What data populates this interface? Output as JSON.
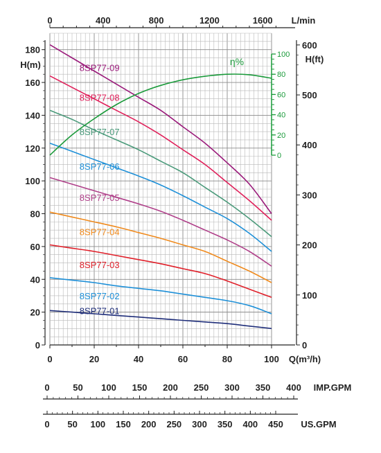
{
  "chart_data": {
    "type": "line",
    "x_axis_bottom": {
      "label": "Q(m³/h)",
      "range": [
        0,
        100
      ],
      "ticks": [
        "0",
        "20",
        "40",
        "60",
        "80",
        "100"
      ]
    },
    "x_axis_top": {
      "label": "L/min",
      "ticks": [
        "0",
        "400",
        "800",
        "1200",
        "1600"
      ]
    },
    "y_axis_left": {
      "label": "H(m)",
      "range": [
        0,
        190
      ],
      "ticks": [
        "0",
        "20",
        "40",
        "60",
        "80",
        "100",
        "120",
        "140",
        "160",
        "180"
      ]
    },
    "y_axis_right": {
      "label": "H(ft)",
      "ticks": [
        "0",
        "100",
        "200",
        "300",
        "400",
        "500",
        "600"
      ]
    },
    "efficiency_axis": {
      "label": "η%",
      "ticks": [
        "0",
        "20",
        "40",
        "60",
        "80",
        "100"
      ],
      "color": "#1a9a3a"
    },
    "imp_gpm_scale": {
      "label": "IMP.GPM",
      "ticks": [
        "0",
        "50",
        "100",
        "150",
        "200",
        "250",
        "300",
        "350",
        "400"
      ]
    },
    "us_gpm_scale": {
      "label": "US.GPM",
      "ticks": [
        "0",
        "50",
        "100",
        "150",
        "200",
        "250",
        "300",
        "350",
        "400",
        "450"
      ]
    },
    "x": [
      0,
      10,
      20,
      30,
      40,
      50,
      60,
      70,
      80,
      90,
      100
    ],
    "series": [
      {
        "name": "8SP77-01",
        "color": "#1f2e7a",
        "values": [
          21,
          20,
          19,
          18,
          17,
          16,
          15,
          14,
          13,
          11.5,
          10
        ]
      },
      {
        "name": "8SP77-02",
        "color": "#1e90d8",
        "values": [
          41,
          39.5,
          38,
          36,
          34.5,
          33,
          31,
          29,
          27,
          24,
          19
        ]
      },
      {
        "name": "8SP77-03",
        "color": "#e0202a",
        "values": [
          61,
          59,
          57,
          54.5,
          52,
          49.5,
          46.5,
          43.5,
          39,
          34,
          29
        ]
      },
      {
        "name": "8SP77-04",
        "color": "#f08a1c",
        "values": [
          81,
          78,
          75,
          72,
          68.5,
          65,
          61,
          57,
          51,
          45,
          38
        ]
      },
      {
        "name": "8SP77-05",
        "color": "#b0408a",
        "values": [
          102,
          98,
          94,
          90,
          86,
          81.5,
          76,
          70,
          64,
          57,
          48
        ]
      },
      {
        "name": "8SP77-06",
        "color": "#1e90d8",
        "values": [
          123,
          118,
          113,
          108,
          103,
          97.5,
          91,
          84,
          77,
          68,
          57
        ]
      },
      {
        "name": "8SP77-07",
        "color": "#4a9a7a",
        "values": [
          143,
          137.5,
          131,
          125,
          119,
          112,
          105,
          96,
          87,
          77,
          66
        ]
      },
      {
        "name": "8SP77-08",
        "color": "#e0205a",
        "values": [
          164,
          157,
          150,
          143,
          136,
          128,
          119,
          110,
          99,
          88,
          76
        ]
      },
      {
        "name": "8SP77-09",
        "color": "#9a1a7a",
        "values": [
          183,
          175,
          167,
          159,
          151,
          143,
          133,
          123,
          111,
          98,
          80
        ]
      },
      {
        "name": "η%",
        "color": "#1a9a3a",
        "axis": "efficiency",
        "values": [
          0,
          20,
          36,
          50,
          61,
          69,
          74.5,
          78,
          80,
          79.5,
          76
        ]
      }
    ]
  }
}
